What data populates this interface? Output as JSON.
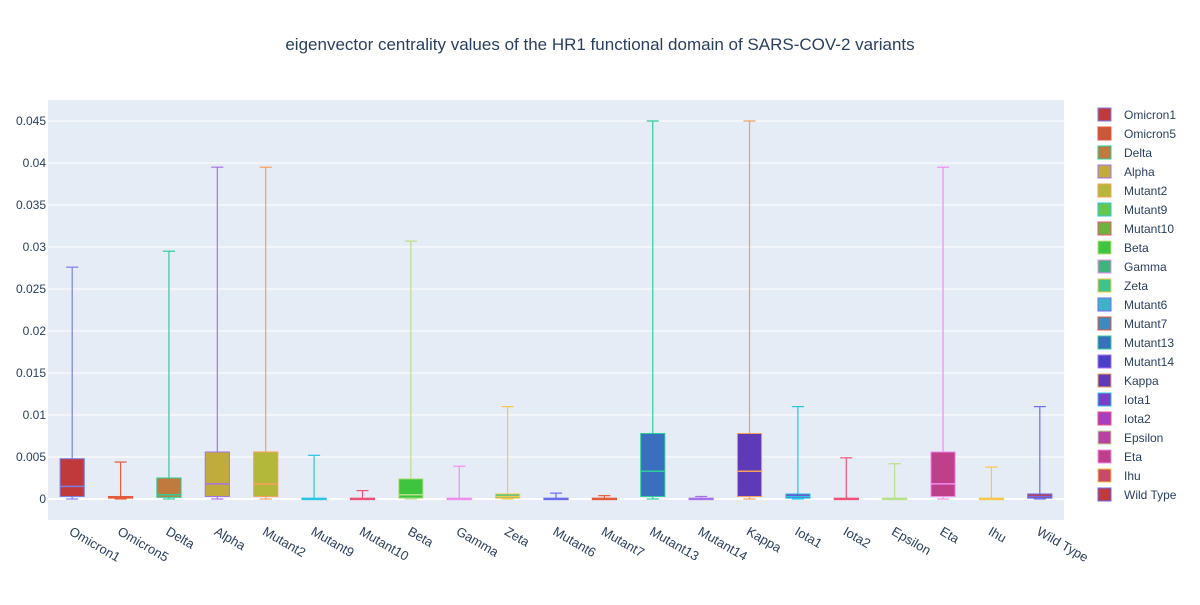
{
  "chart_data": {
    "type": "box",
    "title": "eigenvector centrality values of the HR1 functional domain of SARS-COV-2 variants",
    "xlabel": "",
    "ylabel": "",
    "ylim": [
      -0.0025,
      0.0475
    ],
    "yticks": [
      0,
      0.005,
      0.01,
      0.015,
      0.02,
      0.025,
      0.03,
      0.035,
      0.04,
      0.045
    ],
    "ytick_labels": [
      "0",
      "0.005",
      "0.01",
      "0.015",
      "0.02",
      "0.025",
      "0.03",
      "0.035",
      "0.04",
      "0.045"
    ],
    "grid": true,
    "legend_position": "right",
    "categories": [
      "Omicron1",
      "Omicron5",
      "Delta",
      "Alpha",
      "Mutant2",
      "Mutant9",
      "Mutant10",
      "Beta",
      "Gamma",
      "Zeta",
      "Mutant6",
      "Mutant7",
      "Mutant13",
      "Mutant14",
      "Kappa",
      "Iota1",
      "Iota2",
      "Epsilon",
      "Eta",
      "Ihu",
      "Wild Type"
    ],
    "series": [
      {
        "name": "Omicron1",
        "min": 0,
        "q1": 0.0003,
        "median": 0.0015,
        "q3": 0.0048,
        "max": 0.0276,
        "fill": "#c0393b",
        "line": "#7b7fe8"
      },
      {
        "name": "Omicron5",
        "min": 0,
        "q1": 0.0001,
        "median": 0.0002,
        "q3": 0.0003,
        "max": 0.0044,
        "fill": "#c9573a",
        "line": "#e55a3c"
      },
      {
        "name": "Delta",
        "min": 0,
        "q1": 0.0002,
        "median": 0.0005,
        "q3": 0.0025,
        "max": 0.0295,
        "fill": "#c07a3e",
        "line": "#2ecc9a"
      },
      {
        "name": "Alpha",
        "min": 0,
        "q1": 0.0003,
        "median": 0.0018,
        "q3": 0.0056,
        "max": 0.0395,
        "fill": "#c0ac3c",
        "line": "#a872e8"
      },
      {
        "name": "Mutant2",
        "min": 0,
        "q1": 0.0003,
        "median": 0.0018,
        "q3": 0.0056,
        "max": 0.0395,
        "fill": "#b4b83a",
        "line": "#f7a05a"
      },
      {
        "name": "Mutant9",
        "min": 0,
        "q1": 0,
        "median": 0,
        "q3": 0.0001,
        "max": 0.0052,
        "fill": "#66c74d",
        "line": "#28c4e8"
      },
      {
        "name": "Mutant10",
        "min": 0,
        "q1": 0,
        "median": 0,
        "q3": 0.0001,
        "max": 0.001,
        "fill": "#6bb33e",
        "line": "#ee5378"
      },
      {
        "name": "Beta",
        "min": 0,
        "q1": 0.0001,
        "median": 0.0005,
        "q3": 0.0024,
        "max": 0.0307,
        "fill": "#3ec43e",
        "line": "#b8e08a"
      },
      {
        "name": "Gamma",
        "min": 0,
        "q1": 0,
        "median": 0,
        "q3": 0.0001,
        "max": 0.0039,
        "fill": "#3eb37b",
        "line": "#f08ef0"
      },
      {
        "name": "Zeta",
        "min": 0,
        "q1": 0.0001,
        "median": 0.0003,
        "q3": 0.0006,
        "max": 0.011,
        "fill": "#3ec48a",
        "line": "#f7c74a"
      },
      {
        "name": "Mutant6",
        "min": 0,
        "q1": 0,
        "median": 0,
        "q3": 0.0001,
        "max": 0.0007,
        "fill": "#3eb3c8",
        "line": "#6b6cf0"
      },
      {
        "name": "Mutant7",
        "min": 0,
        "q1": 0,
        "median": 0,
        "q3": 0.0001,
        "max": 0.0004,
        "fill": "#3e8ac0",
        "line": "#e55a3c"
      },
      {
        "name": "Mutant13",
        "min": 0,
        "q1": 0.0003,
        "median": 0.0033,
        "q3": 0.0078,
        "max": 0.045,
        "fill": "#3a6fc0",
        "line": "#2ecc9a"
      },
      {
        "name": "Mutant14",
        "min": 0,
        "q1": 0,
        "median": 0,
        "q3": 0.0001,
        "max": 0.0003,
        "fill": "#4a3fc7",
        "line": "#a872e8"
      },
      {
        "name": "Kappa",
        "min": 0,
        "q1": 0.0003,
        "median": 0.0033,
        "q3": 0.0078,
        "max": 0.045,
        "fill": "#5e3ab8",
        "line": "#f7a05a"
      },
      {
        "name": "Iota1",
        "min": 0,
        "q1": 0.0001,
        "median": 0.0003,
        "q3": 0.0006,
        "max": 0.011,
        "fill": "#7a3fc7",
        "line": "#28c4e8"
      },
      {
        "name": "Iota2",
        "min": 0,
        "q1": 0,
        "median": 0,
        "q3": 0.0001,
        "max": 0.0049,
        "fill": "#a63fc0",
        "line": "#ee5378"
      },
      {
        "name": "Epsilon",
        "min": 0,
        "q1": 0,
        "median": 0,
        "q3": 0.0001,
        "max": 0.0042,
        "fill": "#b83fa3",
        "line": "#b8e08a"
      },
      {
        "name": "Eta",
        "min": 0,
        "q1": 0.0003,
        "median": 0.0018,
        "q3": 0.0056,
        "max": 0.0395,
        "fill": "#c03f8a",
        "line": "#f08ef0"
      },
      {
        "name": "Ihu",
        "min": 0,
        "q1": 0,
        "median": 0,
        "q3": 0.0001,
        "max": 0.0038,
        "fill": "#c84a6b",
        "line": "#f7c74a"
      },
      {
        "name": "Wild Type",
        "min": 0,
        "q1": 0.0001,
        "median": 0.0003,
        "q3": 0.0006,
        "max": 0.011,
        "fill": "#c0393b",
        "line": "#6b6cf0"
      }
    ]
  },
  "colors": {
    "plot_background": "#e5ecf6",
    "gridline": "#ffffff",
    "text": "#2a3f5f",
    "tick_text": "#506784",
    "legend_border": "#8c8c8c"
  }
}
